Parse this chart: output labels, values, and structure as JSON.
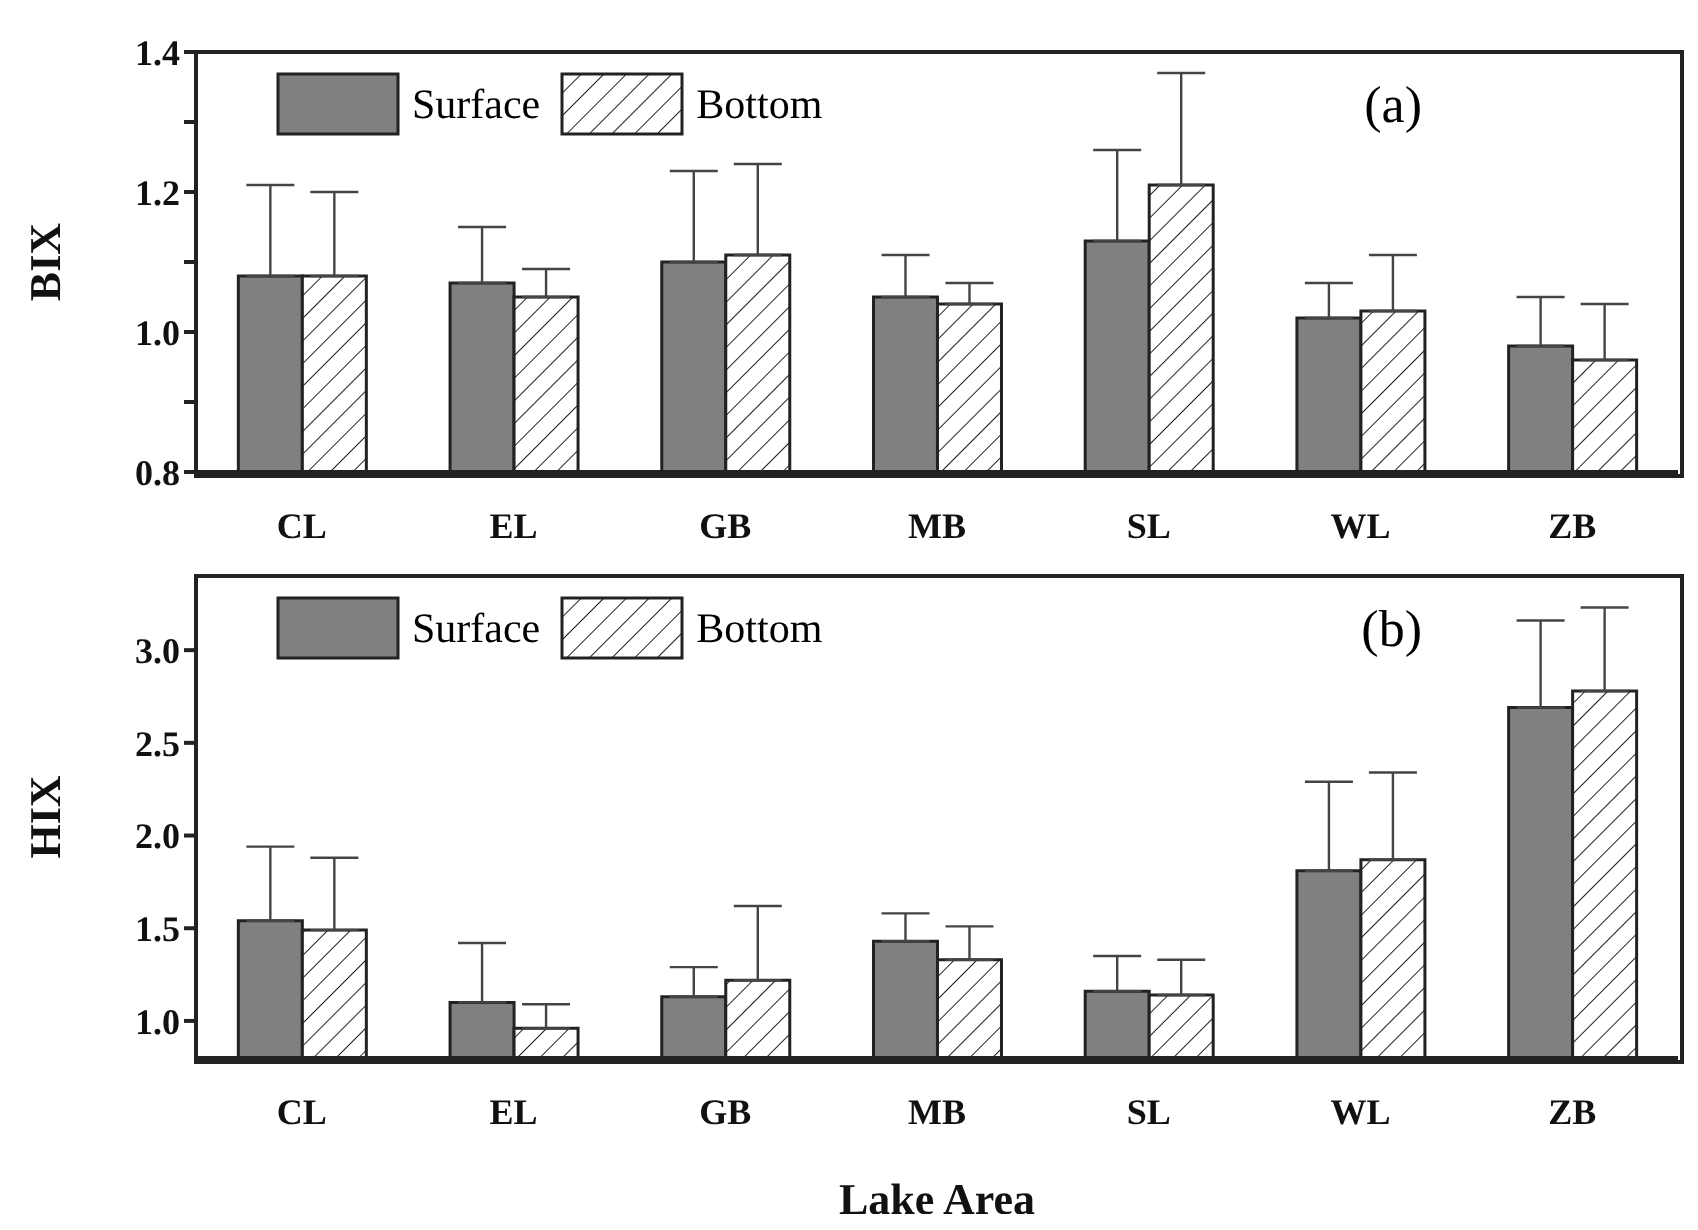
{
  "chart_data": [
    {
      "type": "bar",
      "ylabel": "BIX",
      "categories": [
        "CL",
        "EL",
        "GB",
        "MB",
        "SL",
        "WL",
        "ZB"
      ],
      "ylim": [
        0.8,
        1.4
      ],
      "yticks": [
        0.8,
        {
          "value": 0.9,
          "label": null
        },
        {
          "value": 1,
          "label": "1.0"
        },
        {
          "value": 1.1,
          "label": null
        },
        1.2,
        {
          "value": 1.3,
          "label": null
        },
        1.4
      ],
      "legend": "top left",
      "annotations": [
        "(a)"
      ],
      "series": [
        {
          "name": "Surface",
          "color": "#808080",
          "values": [
            1.08,
            1.07,
            1.1,
            1.05,
            1.13,
            1.02,
            0.98
          ],
          "errors": [
            [
              1.08,
              1.21
            ],
            [
              1.07,
              1.15
            ],
            [
              1.1,
              1.23
            ],
            [
              1.05,
              1.11
            ],
            [
              1.13,
              1.26
            ],
            [
              1.02,
              1.07
            ],
            [
              0.98,
              1.05
            ]
          ]
        },
        {
          "name": "Bottom",
          "color": "#222222",
          "values": [
            1.08,
            1.05,
            1.11,
            1.04,
            1.21,
            1.03,
            0.96
          ],
          "errors": [
            [
              1.08,
              1.2
            ],
            [
              1.05,
              1.09
            ],
            [
              1.11,
              1.24
            ],
            [
              1.04,
              1.07
            ],
            [
              1.21,
              1.37
            ],
            [
              1.03,
              1.11
            ],
            [
              0.96,
              1.04
            ]
          ]
        }
      ]
    },
    {
      "type": "bar",
      "ylabel": "HIX",
      "xlabel": "Lake Area",
      "categories": [
        "CL",
        "EL",
        "GB",
        "MB",
        "SL",
        "WL",
        "ZB"
      ],
      "ylim": [
        0.8,
        3.4
      ],
      "yticks": [
        {
          "value": 1,
          "label": "1.0"
        },
        1.5,
        {
          "value": 2,
          "label": "2.0"
        },
        2.5,
        {
          "value": 3,
          "label": "3.0"
        }
      ],
      "legend": "top left",
      "annotations": [
        "(b)"
      ],
      "series": [
        {
          "name": "Surface",
          "color": "#808080",
          "values": [
            1.54,
            1.1,
            1.13,
            1.43,
            1.16,
            1.81,
            2.69
          ],
          "errors": [
            [
              1.54,
              1.94
            ],
            [
              1.1,
              1.42
            ],
            [
              1.13,
              1.29
            ],
            [
              1.43,
              1.58
            ],
            [
              1.16,
              1.35
            ],
            [
              1.81,
              2.29
            ],
            [
              2.69,
              3.16
            ]
          ]
        },
        {
          "name": "Bottom",
          "color": "#222222",
          "values": [
            1.49,
            0.96,
            1.22,
            1.33,
            1.14,
            1.87,
            2.78
          ],
          "errors": [
            [
              1.49,
              1.88
            ],
            [
              0.96,
              1.09
            ],
            [
              1.22,
              1.62
            ],
            [
              1.33,
              1.51
            ],
            [
              1.14,
              1.33
            ],
            [
              1.87,
              2.34
            ],
            [
              2.78,
              3.23
            ]
          ]
        }
      ]
    }
  ]
}
